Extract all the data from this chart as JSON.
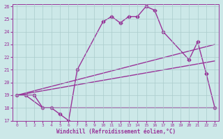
{
  "xlabel": "Windchill (Refroidissement éolien,°C)",
  "background_color": "#cce8e8",
  "grid_color": "#aacccc",
  "line_color": "#993399",
  "xlim": [
    -0.5,
    23.5
  ],
  "ylim": [
    17,
    26.2
  ],
  "xtick_vals": [
    0,
    1,
    2,
    3,
    4,
    5,
    6,
    7,
    8,
    9,
    10,
    11,
    12,
    13,
    14,
    15,
    16,
    17,
    18,
    19,
    20,
    21,
    22,
    23
  ],
  "ytick_vals": [
    17,
    18,
    19,
    20,
    21,
    22,
    23,
    24,
    25,
    26
  ],
  "series": [
    {
      "x": [
        0,
        1,
        2,
        3,
        4,
        5,
        6,
        7,
        10,
        11,
        12,
        13,
        14,
        15,
        16,
        17,
        20,
        21,
        22,
        23
      ],
      "y": [
        19,
        19,
        19,
        18,
        18,
        17.5,
        17,
        21,
        24.8,
        25.2,
        24.7,
        25.2,
        25.2,
        26,
        25.7,
        24,
        21.8,
        23.2,
        20.7,
        18
      ],
      "marker": "D",
      "markersize": 2.5,
      "linewidth": 1.0
    },
    {
      "x": [
        0,
        1,
        3,
        4,
        6,
        23
      ],
      "y": [
        19,
        19,
        18,
        18,
        18,
        18
      ],
      "marker": null,
      "markersize": 0,
      "linewidth": 1.0
    },
    {
      "x": [
        0,
        23
      ],
      "y": [
        19,
        23
      ],
      "marker": null,
      "markersize": 0,
      "linewidth": 1.0
    },
    {
      "x": [
        0,
        23
      ],
      "y": [
        19,
        21.7
      ],
      "marker": null,
      "markersize": 0,
      "linewidth": 1.0
    }
  ]
}
